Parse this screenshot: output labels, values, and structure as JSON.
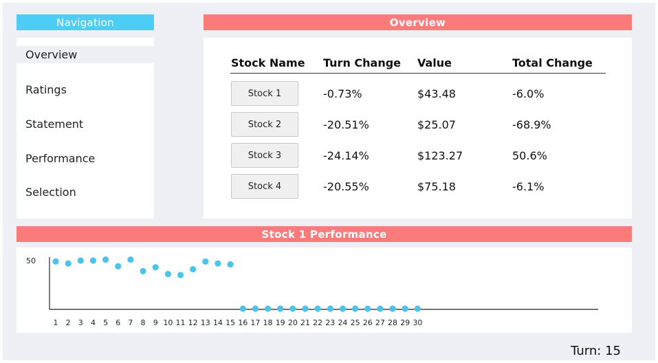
{
  "navigation": {
    "title": "Navigation",
    "items": [
      {
        "label": "Overview"
      },
      {
        "label": "Ratings"
      },
      {
        "label": "Statement"
      },
      {
        "label": "Performance"
      },
      {
        "label": "Selection"
      }
    ]
  },
  "overview": {
    "title": "Overview",
    "columns": [
      "Stock Name",
      "Turn Change",
      "Value",
      "Total Change"
    ],
    "rows": [
      {
        "name": "Stock 1",
        "turn_change": "-0.73%",
        "value": "$43.48",
        "total_change": "-6.0%"
      },
      {
        "name": "Stock 2",
        "turn_change": "-20.51%",
        "value": "$25.07",
        "total_change": "-68.9%"
      },
      {
        "name": "Stock 3",
        "turn_change": "-24.14%",
        "value": "$123.27",
        "total_change": "50.6%"
      },
      {
        "name": "Stock 4",
        "turn_change": "-20.55%",
        "value": "$75.18",
        "total_change": "-6.1%"
      }
    ]
  },
  "performance": {
    "title": "Stock 1 Performance"
  },
  "turn": {
    "label": "Turn: 15"
  },
  "colors": {
    "nav_header": "#4ccdf5",
    "section_header": "#fb7a7a",
    "point": "#4cc3ea",
    "background": "#eef0f5"
  },
  "chart_data": {
    "type": "scatter",
    "title": "Stock 1 Performance",
    "x": [
      1,
      2,
      3,
      4,
      5,
      6,
      7,
      8,
      9,
      10,
      11,
      12,
      13,
      14,
      15,
      16,
      17,
      18,
      19,
      20,
      21,
      22,
      23,
      24,
      25,
      26,
      27,
      28,
      29,
      30
    ],
    "y_tick_labels": [
      "50"
    ],
    "xlabel": "",
    "ylabel": "",
    "ylim": [
      0,
      50
    ],
    "series": [
      {
        "values": [
          49,
          47,
          50,
          50,
          51,
          44,
          51,
          39,
          43,
          36,
          35,
          41,
          49,
          47,
          46,
          0,
          0,
          0,
          0,
          0,
          0,
          0,
          0,
          0,
          0,
          0,
          0,
          0,
          0,
          0
        ]
      }
    ],
    "grid": false,
    "legend": "none"
  }
}
